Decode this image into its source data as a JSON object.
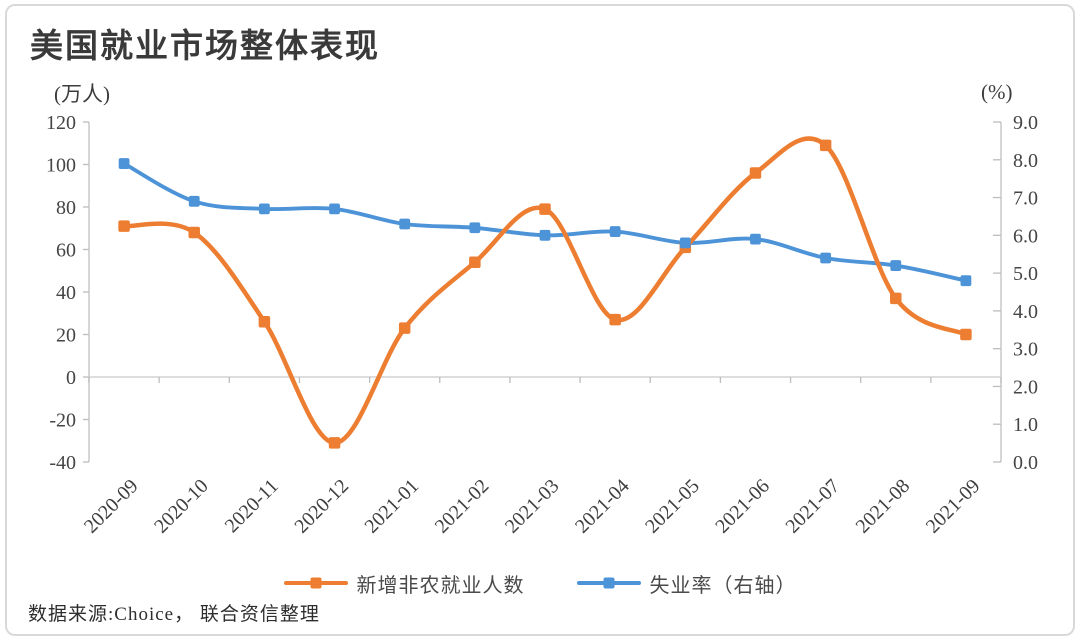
{
  "figure": {
    "title": "美国就业市场整体表现",
    "left_axis_unit": "(万人)",
    "right_axis_unit": "(%)",
    "source_note": "数据来源:Choice， 联合资信整理"
  },
  "chart_data": {
    "type": "line",
    "title": "美国就业市场整体表现",
    "smoothed": true,
    "legend_position": "bottom",
    "gridlines": "zero-line-only",
    "categories": [
      "2020-09",
      "2020-10",
      "2020-11",
      "2020-12",
      "2021-01",
      "2021-02",
      "2021-03",
      "2021-04",
      "2021-05",
      "2021-06",
      "2021-07",
      "2021-08",
      "2021-09"
    ],
    "series": [
      {
        "name": "新增非农就业人数",
        "axis": "left",
        "color": "#ED7D31",
        "marker": "square",
        "values": [
          71,
          68,
          26,
          -31,
          23,
          54,
          79,
          27,
          61,
          96,
          109,
          37,
          20
        ]
      },
      {
        "name": "失业率（右轴）",
        "axis": "right",
        "color": "#4D93D8",
        "marker": "square",
        "values": [
          7.9,
          6.9,
          6.7,
          6.7,
          6.3,
          6.2,
          6.0,
          6.1,
          5.8,
          5.9,
          5.4,
          5.2,
          4.8
        ]
      }
    ],
    "left_axis": {
      "unit": "(万人)",
      "min": -40,
      "max": 120,
      "step": 20,
      "tick_labels": [
        "120",
        "100",
        "80",
        "60",
        "40",
        "20",
        "0",
        "-20",
        "-40"
      ]
    },
    "right_axis": {
      "unit": "(%)",
      "min": 0,
      "max": 9,
      "step": 1,
      "tick_labels": [
        "9.0",
        "8.0",
        "7.0",
        "6.0",
        "5.0",
        "4.0",
        "3.0",
        "2.0",
        "1.0",
        "0.0"
      ]
    }
  }
}
